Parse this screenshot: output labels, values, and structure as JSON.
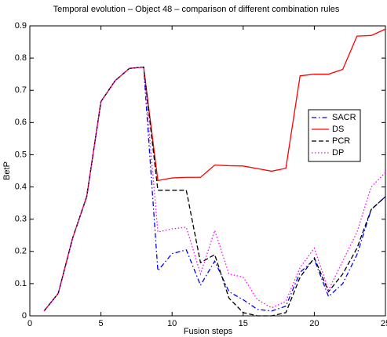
{
  "chart_data": {
    "type": "line",
    "title": "Temporal evolution – Object 48 – comparison of different combination rules",
    "x_label": "Fusion steps",
    "y_label": "BetP",
    "x": [
      1,
      2,
      3,
      4,
      5,
      6,
      7,
      8,
      9,
      10,
      11,
      12,
      13,
      14,
      15,
      16,
      17,
      18,
      19,
      20,
      21,
      22,
      23,
      24,
      25
    ],
    "series": [
      {
        "name": "SACR",
        "color": "#0000ff",
        "linestyle": "dashdot",
        "values": [
          0.015,
          0.07,
          0.24,
          0.37,
          0.665,
          0.73,
          0.768,
          0.772,
          0.14,
          0.193,
          0.205,
          0.095,
          0.17,
          0.075,
          0.05,
          0.02,
          0.015,
          0.03,
          0.135,
          0.175,
          0.06,
          0.1,
          0.19,
          0.33,
          0.37
        ]
      },
      {
        "name": "DS",
        "color": "#ff0000",
        "linestyle": "solid",
        "values": [
          0.015,
          0.07,
          0.24,
          0.37,
          0.665,
          0.73,
          0.768,
          0.772,
          0.42,
          0.428,
          0.43,
          0.43,
          0.468,
          0.466,
          0.465,
          0.457,
          0.449,
          0.458,
          0.745,
          0.75,
          0.75,
          0.765,
          0.868,
          0.87,
          0.89
        ]
      },
      {
        "name": "PCR",
        "color": "#000000",
        "linestyle": "dashed",
        "values": [
          0.015,
          0.07,
          0.24,
          0.37,
          0.665,
          0.73,
          0.768,
          0.772,
          0.39,
          0.39,
          0.39,
          0.165,
          0.19,
          0.055,
          0.01,
          0.0,
          0.0,
          0.01,
          0.12,
          0.18,
          0.075,
          0.13,
          0.21,
          0.33,
          0.37
        ]
      },
      {
        "name": "DP",
        "color": "#ff00ff",
        "linestyle": "dotted",
        "values": [
          0.015,
          0.07,
          0.24,
          0.37,
          0.665,
          0.73,
          0.768,
          0.772,
          0.26,
          0.27,
          0.275,
          0.13,
          0.265,
          0.13,
          0.12,
          0.05,
          0.025,
          0.045,
          0.15,
          0.21,
          0.08,
          0.17,
          0.26,
          0.4,
          0.445
        ]
      }
    ],
    "xlim": [
      0,
      25
    ],
    "xticks": [
      0,
      5,
      10,
      15,
      20,
      25
    ],
    "ylim": [
      0,
      0.9
    ],
    "yticks": [
      0,
      0.1,
      0.2,
      0.3,
      0.4,
      0.5,
      0.6,
      0.7,
      0.8,
      0.9
    ],
    "grid": false,
    "legend": "right"
  }
}
